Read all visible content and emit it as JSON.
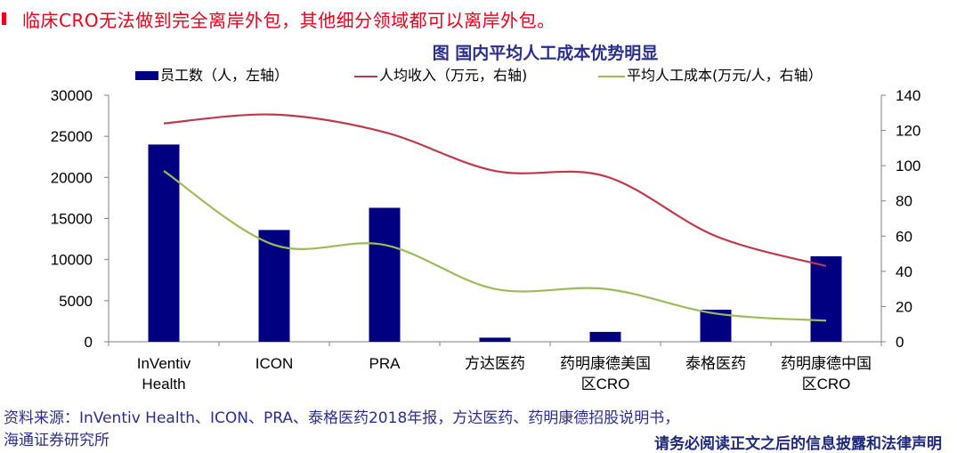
{
  "headline": {
    "text": "临床CRO无法做到完全离岸外包，其他细分领域都可以离岸外包。",
    "color": "#e8001c"
  },
  "chart_title": "图  国内平均人工成本优势明显",
  "legend": [
    {
      "label": "员工数（人，左轴）",
      "type": "bar",
      "color": "#000080"
    },
    {
      "label": "人均收入（万元，右轴)",
      "type": "line",
      "color": "#c0394b"
    },
    {
      "label": "平均人工成本(万元/人，右轴）",
      "type": "line",
      "color": "#9bbb59"
    }
  ],
  "chart_data": {
    "type": "bar+line",
    "title": "图  国内平均人工成本优势明显",
    "categories": [
      "InVentiv Health",
      "ICON",
      "PRA",
      "方达医药",
      "药明康德美国区CRO",
      "泰格医药",
      "药明康德中国区CRO"
    ],
    "category_labels": [
      [
        "InVentiv",
        "Health"
      ],
      [
        "ICON"
      ],
      [
        "PRA"
      ],
      [
        "方达医药"
      ],
      [
        "药明康德美国",
        "区CRO"
      ],
      [
        "泰格医药"
      ],
      [
        "药明康德中国",
        "区CRO"
      ]
    ],
    "series": [
      {
        "name": "员工数（人，左轴）",
        "type": "bar",
        "axis": "left",
        "color": "#000080",
        "values": [
          24000,
          13600,
          16300,
          500,
          1200,
          3900,
          10400
        ]
      },
      {
        "name": "人均收入（万元，右轴)",
        "type": "line",
        "axis": "right",
        "color": "#c0394b",
        "values": [
          124,
          129,
          119,
          97,
          94,
          60,
          43
        ]
      },
      {
        "name": "平均人工成本(万元/人，右轴）",
        "type": "line",
        "axis": "right",
        "color": "#9bbb59",
        "values": [
          97,
          55,
          55,
          30,
          30,
          16,
          12
        ]
      }
    ],
    "left_axis": {
      "min": 0,
      "max": 30000,
      "ticks": [
        0,
        5000,
        10000,
        15000,
        20000,
        25000,
        30000
      ]
    },
    "right_axis": {
      "min": 0,
      "max": 140,
      "ticks": [
        0,
        20,
        40,
        60,
        80,
        100,
        120,
        140
      ]
    },
    "grid": false,
    "legend_position": "top"
  },
  "footer": {
    "source_line1": "资料来源：InVentiv Health、ICON、PRA、泰格医药2018年报，方达医药、药明康德招股说明书，",
    "source_line2": "海通证券研究所",
    "disclaimer": "请务必阅读正文之后的信息披露和法律声明"
  }
}
